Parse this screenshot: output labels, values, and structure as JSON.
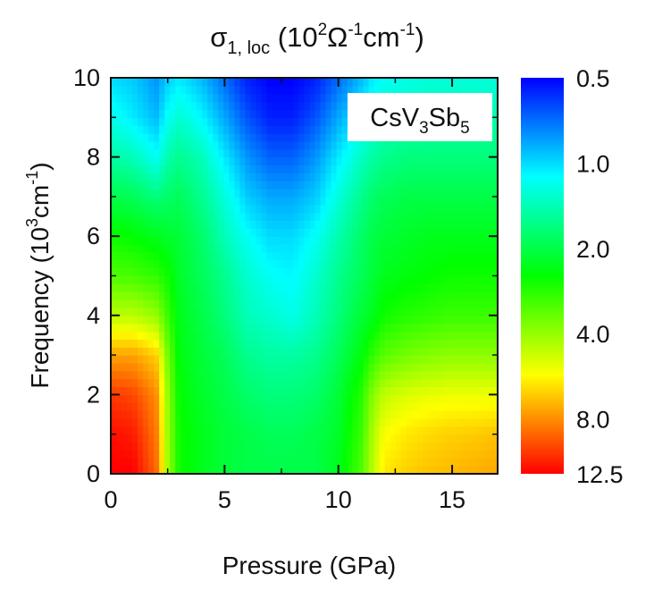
{
  "chart_data": {
    "type": "heatmap",
    "title": {
      "symbol": "σ",
      "subscript": "1, loc",
      "units_open": " (10",
      "units_exp1": "2",
      "units_omega": "Ω",
      "units_exp2": "-1",
      "units_cm": "cm",
      "units_exp3": "-1",
      "units_close": ")"
    },
    "xlabel": "Pressure (GPa)",
    "ylabel": {
      "text": "Frequency (10",
      "exp": "3",
      "unit": "cm",
      "unit_exp": "-1",
      "close": ")"
    },
    "annotation": {
      "base1": "CsV",
      "sub1": "3",
      "base2": "Sb",
      "sub2": "5"
    },
    "xlim": [
      0,
      17
    ],
    "ylim": [
      0,
      10
    ],
    "x_ticks": [
      "0",
      "5",
      "10",
      "15"
    ],
    "x_tick_values": [
      0,
      5,
      10,
      15
    ],
    "y_ticks": [
      "0",
      "2",
      "4",
      "6",
      "8",
      "10"
    ],
    "y_tick_values": [
      0,
      2,
      4,
      6,
      8,
      10
    ],
    "colorbar": {
      "scale": "log",
      "range": [
        0.5,
        12.5
      ],
      "ticks": [
        "0.5",
        "1.0",
        "2.0",
        "4.0",
        "8.0",
        "12.5"
      ],
      "tick_values": [
        0.5,
        1.0,
        2.0,
        4.0,
        8.0,
        12.5
      ],
      "colors_low_to_high": [
        "#0000ff",
        "#00ffff",
        "#00ff00",
        "#ffff00",
        "#ff0000"
      ]
    },
    "z_grid": {
      "x": [
        0,
        1,
        2,
        2.5,
        3,
        4,
        5,
        6,
        7,
        8,
        9,
        10,
        11,
        11.5,
        12,
        13,
        14,
        15,
        16,
        17
      ],
      "y": [
        0,
        1,
        2,
        3,
        4,
        5,
        6,
        7,
        8,
        9,
        10
      ],
      "values": [
        [
          12.5,
          12.5,
          9.0,
          4.2,
          2.6,
          2.3,
          2.1,
          2.0,
          2.0,
          2.0,
          2.0,
          2.3,
          3.2,
          4.5,
          6.0,
          6.5,
          6.8,
          7.0,
          7.2,
          7.4
        ],
        [
          12.0,
          11.5,
          8.5,
          4.1,
          2.6,
          2.3,
          2.1,
          2.0,
          1.9,
          1.9,
          2.0,
          2.2,
          3.0,
          4.3,
          5.5,
          6.0,
          6.3,
          6.5,
          6.6,
          6.8
        ],
        [
          10.5,
          10.0,
          8.0,
          4.0,
          2.5,
          2.2,
          2.0,
          1.8,
          1.7,
          1.7,
          1.8,
          2.1,
          2.8,
          3.8,
          4.6,
          5.0,
          5.2,
          5.3,
          5.3,
          5.3
        ],
        [
          7.5,
          7.5,
          6.5,
          3.6,
          2.4,
          2.1,
          1.9,
          1.6,
          1.5,
          1.5,
          1.6,
          1.9,
          2.4,
          2.9,
          3.3,
          3.6,
          3.8,
          3.9,
          3.9,
          3.9
        ],
        [
          4.5,
          4.5,
          4.0,
          3.0,
          2.3,
          2.0,
          1.7,
          1.4,
          1.3,
          1.2,
          1.4,
          1.7,
          2.1,
          2.3,
          2.6,
          2.8,
          2.9,
          3.0,
          3.0,
          3.0
        ],
        [
          3.2,
          3.1,
          2.9,
          2.6,
          2.2,
          1.9,
          1.6,
          1.3,
          1.15,
          1.1,
          1.3,
          1.6,
          1.9,
          2.1,
          2.3,
          2.4,
          2.5,
          2.6,
          2.6,
          2.6
        ],
        [
          2.6,
          2.5,
          2.3,
          2.2,
          2.1,
          1.8,
          1.4,
          1.15,
          1.0,
          1.0,
          1.15,
          1.45,
          1.8,
          2.0,
          2.1,
          2.2,
          2.3,
          2.3,
          2.3,
          2.3
        ],
        [
          2.0,
          1.9,
          1.7,
          1.8,
          1.9,
          1.6,
          1.25,
          0.95,
          0.85,
          0.85,
          0.95,
          1.25,
          1.6,
          1.8,
          1.9,
          2.0,
          2.0,
          2.0,
          2.0,
          2.0
        ],
        [
          1.5,
          1.4,
          1.15,
          1.45,
          1.6,
          1.4,
          1.05,
          0.8,
          0.68,
          0.68,
          0.8,
          1.05,
          1.35,
          1.5,
          1.6,
          1.7,
          1.7,
          1.7,
          1.7,
          1.7
        ],
        [
          1.2,
          1.05,
          0.9,
          1.15,
          1.3,
          1.1,
          0.85,
          0.65,
          0.55,
          0.55,
          0.65,
          0.85,
          1.1,
          1.25,
          1.35,
          1.4,
          1.45,
          1.45,
          1.45,
          1.45
        ],
        [
          1.0,
          0.95,
          0.8,
          0.95,
          1.05,
          0.9,
          0.7,
          0.55,
          0.5,
          0.5,
          0.55,
          0.7,
          0.9,
          1.05,
          1.15,
          1.2,
          1.25,
          1.25,
          1.25,
          1.25
        ]
      ]
    }
  }
}
